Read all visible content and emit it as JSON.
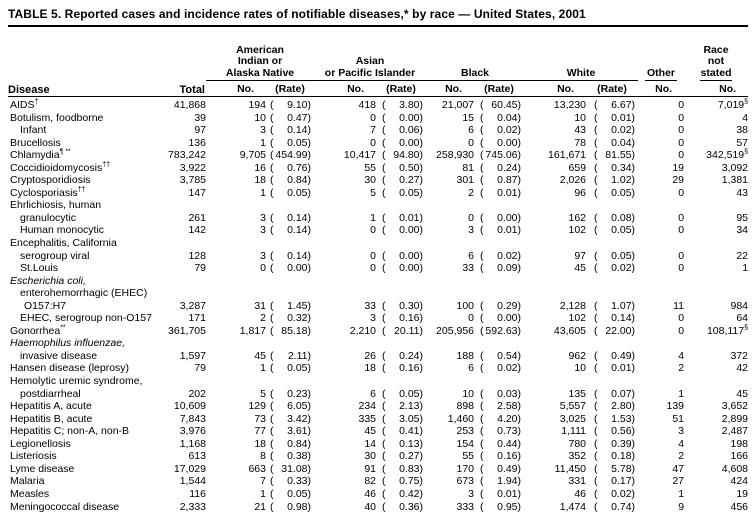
{
  "title": "TABLE 5. Reported cases and incidence rates of notifiable diseases,* by race — United States, 2001",
  "header": {
    "disease": "Disease",
    "total": "Total",
    "groups": {
      "aian": "American\nIndian or\nAlaska Native",
      "api": "Asian\nor Pacific Islander",
      "black": "Black",
      "white": "White",
      "other": "Other",
      "race_not_stated": "Race\nnot\nstated"
    },
    "no_label": "No.",
    "rate_label": "(Rate)"
  },
  "rows": [
    {
      "disease": "AIDS",
      "sup": "†",
      "indent": 0,
      "cells": [
        "41,868",
        "194",
        "9.10",
        "418",
        "3.80",
        "21,007",
        "60.45",
        "13,230",
        "6.67",
        "0",
        "7,019"
      ],
      "ns_sup": "§"
    },
    {
      "disease": "Botulism, foodborne",
      "indent": 0,
      "cells": [
        "39",
        "10",
        "0.47",
        "0",
        "0.00",
        "15",
        "0.04",
        "10",
        "0.01",
        "0",
        "4"
      ]
    },
    {
      "disease": "Infant",
      "indent": 1,
      "cells": [
        "97",
        "3",
        "0.14",
        "7",
        "0.06",
        "6",
        "0.02",
        "43",
        "0.02",
        "0",
        "38"
      ]
    },
    {
      "disease": "Brucellosis",
      "indent": 0,
      "cells": [
        "136",
        "1",
        "0.05",
        "0",
        "0.00",
        "0",
        "0.00",
        "78",
        "0.04",
        "0",
        "57"
      ]
    },
    {
      "disease": "Chlamydia",
      "sup": "¶ **",
      "indent": 0,
      "cells": [
        "783,242",
        "9,705",
        "454.99",
        "10,417",
        "94.80",
        "258,930",
        "745.06",
        "161,671",
        "81.55",
        "0",
        "342,519"
      ],
      "ns_sup": "§"
    },
    {
      "disease": "Coccidioidomycosis",
      "sup": "††",
      "indent": 0,
      "cells": [
        "3,922",
        "16",
        "0.76",
        "55",
        "0.50",
        "81",
        "0.24",
        "659",
        "0.34",
        "19",
        "3,092"
      ]
    },
    {
      "disease": "Cryptosporidiosis",
      "indent": 0,
      "cells": [
        "3,785",
        "18",
        "0.84",
        "30",
        "0.27",
        "301",
        "0.87",
        "2,026",
        "1.02",
        "29",
        "1,381"
      ]
    },
    {
      "disease": "Cyclosporiasis",
      "sup": "††",
      "indent": 0,
      "cells": [
        "147",
        "1",
        "0.05",
        "5",
        "0.05",
        "2",
        "0.01",
        "96",
        "0.05",
        "0",
        "43"
      ]
    },
    {
      "disease": "Ehrlichiosis, human",
      "indent": 0,
      "cells": []
    },
    {
      "disease": "granulocytic",
      "indent": 1,
      "cells": [
        "261",
        "3",
        "0.14",
        "1",
        "0.01",
        "0",
        "0.00",
        "162",
        "0.08",
        "0",
        "95"
      ]
    },
    {
      "disease": "Human monocytic",
      "indent": 1,
      "cells": [
        "142",
        "3",
        "0.14",
        "0",
        "0.00",
        "3",
        "0.01",
        "102",
        "0.05",
        "0",
        "34"
      ]
    },
    {
      "disease": "Encephalitis, California",
      "indent": 0,
      "cells": []
    },
    {
      "disease": "serogroup viral",
      "indent": 1,
      "cells": [
        "128",
        "3",
        "0.14",
        "0",
        "0.00",
        "6",
        "0.02",
        "97",
        "0.05",
        "0",
        "22"
      ]
    },
    {
      "disease": "St.Louis",
      "indent": 1,
      "cells": [
        "79",
        "0",
        "0.00",
        "0",
        "0.00",
        "33",
        "0.09",
        "45",
        "0.02",
        "0",
        "1"
      ]
    },
    {
      "disease": "Escherichia coli,",
      "indent": 0,
      "italic": true,
      "cells": []
    },
    {
      "disease": "enterohemorrhagic (EHEC)",
      "indent": 1,
      "cells": []
    },
    {
      "disease": "O157:H7",
      "indent": 1.5,
      "cells": [
        "3,287",
        "31",
        "1.45",
        "33",
        "0.30",
        "100",
        "0.29",
        "2,128",
        "1.07",
        "11",
        "984"
      ]
    },
    {
      "disease": "EHEC, serogroup non-O157",
      "indent": 1,
      "cells": [
        "171",
        "2",
        "0.32",
        "3",
        "0.16",
        "0",
        "0.00",
        "102",
        "0.14",
        "0",
        "64"
      ]
    },
    {
      "disease": "Gonorrhea",
      "sup": "**",
      "indent": 0,
      "cells": [
        "361,705",
        "1,817",
        "85.18",
        "2,210",
        "20.11",
        "205,956",
        "592.63",
        "43,605",
        "22.00",
        "0",
        "108,117"
      ],
      "ns_sup": "§"
    },
    {
      "disease": "Haemophilus influenzae,",
      "indent": 0,
      "italic": true,
      "cells": []
    },
    {
      "disease": "invasive disease",
      "indent": 1,
      "cells": [
        "1,597",
        "45",
        "2.11",
        "26",
        "0.24",
        "188",
        "0.54",
        "962",
        "0.49",
        "4",
        "372"
      ]
    },
    {
      "disease": "Hansen disease (leprosy)",
      "indent": 0,
      "cells": [
        "79",
        "1",
        "0.05",
        "18",
        "0.16",
        "6",
        "0.02",
        "10",
        "0.01",
        "2",
        "42"
      ]
    },
    {
      "disease": "Hemolytic uremic syndrome,",
      "indent": 0,
      "cells": []
    },
    {
      "disease": "postdiarrheal",
      "indent": 1,
      "cells": [
        "202",
        "5",
        "0.23",
        "6",
        "0.05",
        "10",
        "0.03",
        "135",
        "0.07",
        "1",
        "45"
      ]
    },
    {
      "disease": "Hepatitis A, acute",
      "indent": 0,
      "cells": [
        "10,609",
        "129",
        "6.05",
        "234",
        "2.13",
        "898",
        "2.58",
        "5,557",
        "2.80",
        "139",
        "3,652"
      ]
    },
    {
      "disease": "Hepatitis B, acute",
      "indent": 0,
      "cells": [
        "7,843",
        "73",
        "3.42",
        "335",
        "3.05",
        "1,460",
        "4.20",
        "3,025",
        "1.53",
        "51",
        "2,899"
      ]
    },
    {
      "disease": "Hepatitis C; non-A, non-B",
      "indent": 0,
      "cells": [
        "3,976",
        "77",
        "3.61",
        "45",
        "0.41",
        "253",
        "0.73",
        "1,111",
        "0.56",
        "3",
        "2,487"
      ]
    },
    {
      "disease": "Legionellosis",
      "indent": 0,
      "cells": [
        "1,168",
        "18",
        "0.84",
        "14",
        "0.13",
        "154",
        "0.44",
        "780",
        "0.39",
        "4",
        "198"
      ]
    },
    {
      "disease": "Listeriosis",
      "indent": 0,
      "cells": [
        "613",
        "8",
        "0.38",
        "30",
        "0.27",
        "55",
        "0.16",
        "352",
        "0.18",
        "2",
        "166"
      ]
    },
    {
      "disease": "Lyme disease",
      "indent": 0,
      "cells": [
        "17,029",
        "663",
        "31.08",
        "91",
        "0.83",
        "170",
        "0.49",
        "11,450",
        "5.78",
        "47",
        "4,608"
      ]
    },
    {
      "disease": "Malaria",
      "indent": 0,
      "cells": [
        "1,544",
        "7",
        "0.33",
        "82",
        "0.75",
        "673",
        "1.94",
        "331",
        "0.17",
        "27",
        "424"
      ]
    },
    {
      "disease": "Measles",
      "indent": 0,
      "cells": [
        "116",
        "1",
        "0.05",
        "46",
        "0.42",
        "3",
        "0.01",
        "46",
        "0.02",
        "1",
        "19"
      ]
    },
    {
      "disease": "Meningococcal disease",
      "indent": 0,
      "cells": [
        "2,333",
        "21",
        "0.98",
        "40",
        "0.36",
        "333",
        "0.95",
        "1,474",
        "0.74",
        "9",
        "456"
      ]
    }
  ]
}
